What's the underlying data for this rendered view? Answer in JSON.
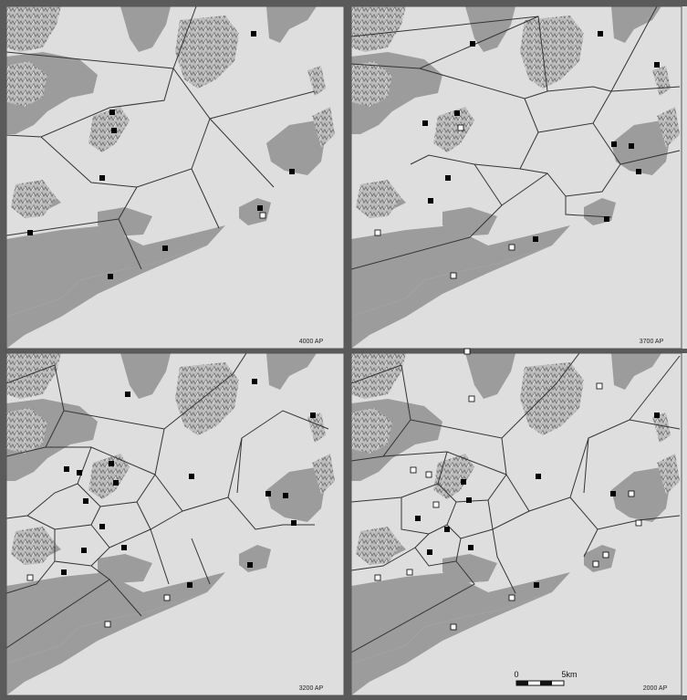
{
  "figure": {
    "panels": [
      {
        "label": "4000 AP",
        "closed_sites": [
          [
            123,
            123
          ],
          [
            125,
            143
          ],
          [
            112,
            195
          ],
          [
            278,
            37
          ],
          [
            320,
            188
          ],
          [
            285,
            228
          ],
          [
            33,
            255
          ],
          [
            181,
            272
          ],
          [
            121,
            303
          ]
        ],
        "open_sites": [
          [
            288,
            236
          ]
        ]
      },
      {
        "label": "3700 AP",
        "closed_sites": [
          [
            518,
            48
          ],
          [
            658,
            37
          ],
          [
            720,
            71
          ],
          [
            501,
            124
          ],
          [
            466,
            135
          ],
          [
            491,
            195
          ],
          [
            472,
            220
          ],
          [
            673,
            158
          ],
          [
            692,
            160
          ],
          [
            700,
            188
          ],
          [
            665,
            240
          ],
          [
            587,
            262
          ]
        ],
        "open_sites": [
          [
            505,
            140
          ],
          [
            414,
            255
          ],
          [
            561,
            271
          ],
          [
            497,
            302
          ]
        ]
      },
      {
        "label": "3200 AP",
        "closed_sites": [
          [
            140,
            432
          ],
          [
            279,
            418
          ],
          [
            343,
            455
          ],
          [
            122,
            508
          ],
          [
            87,
            518
          ],
          [
            73,
            514
          ],
          [
            127,
            529
          ],
          [
            94,
            549
          ],
          [
            210,
            522
          ],
          [
            294,
            541
          ],
          [
            313,
            543
          ],
          [
            322,
            573
          ],
          [
            112,
            577
          ],
          [
            136,
            600
          ],
          [
            92,
            603
          ],
          [
            70,
            627
          ],
          [
            274,
            619
          ],
          [
            208,
            641
          ]
        ],
        "open_sites": [
          [
            33,
            633
          ],
          [
            183,
            655
          ],
          [
            118,
            684
          ]
        ]
      },
      {
        "label": "2000 AP",
        "closed_sites": [
          [
            720,
            455
          ],
          [
            508,
            528
          ],
          [
            590,
            522
          ],
          [
            514,
            548
          ],
          [
            458,
            568
          ],
          [
            490,
            580
          ],
          [
            471,
            605
          ],
          [
            516,
            600
          ],
          [
            672,
            541
          ],
          [
            588,
            641
          ]
        ],
        "open_sites": [
          [
            517,
            437
          ],
          [
            657,
            423
          ],
          [
            453,
            515
          ],
          [
            470,
            520
          ],
          [
            478,
            553
          ],
          [
            692,
            541
          ],
          [
            700,
            573
          ],
          [
            414,
            633
          ],
          [
            449,
            627
          ],
          [
            664,
            608
          ],
          [
            653,
            618
          ],
          [
            561,
            655
          ],
          [
            497,
            687
          ],
          [
            512,
            385
          ]
        ]
      }
    ],
    "scale_bar": {
      "start_label": "0",
      "end_label": "5km"
    }
  }
}
